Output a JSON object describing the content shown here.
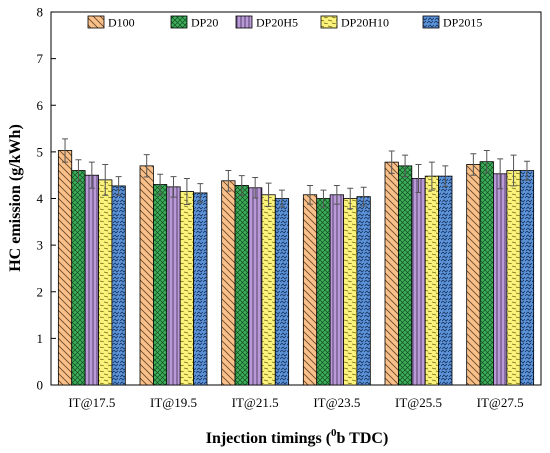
{
  "chart_data": {
    "type": "bar",
    "title": "",
    "xlabel": "Injection timings (",
    "xlabel_sup": "0",
    "xlabel_tail": "b TDC)",
    "ylabel": "HC emission (g/kWh)",
    "ylim": [
      0,
      8
    ],
    "yticks": [
      "0",
      "1",
      "2",
      "3",
      "4",
      "5",
      "6",
      "7",
      "8"
    ],
    "categories": [
      "IT@17.5",
      "IT@19.5",
      "IT@21.5",
      "IT@23.5",
      "IT@25.5",
      "IT@27.5"
    ],
    "legend_position": "top",
    "grid": false,
    "series": [
      {
        "name": "D100",
        "color": "#f9c08a",
        "pattern": "diag-back",
        "values": [
          5.03,
          4.7,
          4.38,
          4.08,
          4.78,
          4.73
        ],
        "errors": [
          0.25,
          0.24,
          0.22,
          0.2,
          0.24,
          0.23
        ]
      },
      {
        "name": "DP20",
        "color": "#3fae5a",
        "pattern": "cross",
        "values": [
          4.6,
          4.3,
          4.28,
          4.0,
          4.7,
          4.79
        ],
        "errors": [
          0.23,
          0.22,
          0.21,
          0.18,
          0.23,
          0.24
        ]
      },
      {
        "name": "DP20H5",
        "color": "#b99ad6",
        "pattern": "vertical",
        "values": [
          4.5,
          4.25,
          4.23,
          4.08,
          4.43,
          4.53
        ],
        "errors": [
          0.28,
          0.22,
          0.22,
          0.2,
          0.3,
          0.32
        ]
      },
      {
        "name": "DP20H10",
        "color": "#fbf27c",
        "pattern": "dashes",
        "values": [
          4.4,
          4.15,
          4.08,
          4.0,
          4.48,
          4.6
        ],
        "errors": [
          0.33,
          0.28,
          0.25,
          0.22,
          0.3,
          0.33
        ]
      },
      {
        "name": "DP2015",
        "color": "#5d93d8",
        "pattern": "zigzag",
        "values": [
          4.27,
          4.12,
          4.0,
          4.04,
          4.48,
          4.6
        ],
        "errors": [
          0.2,
          0.2,
          0.18,
          0.2,
          0.22,
          0.2
        ]
      }
    ]
  }
}
